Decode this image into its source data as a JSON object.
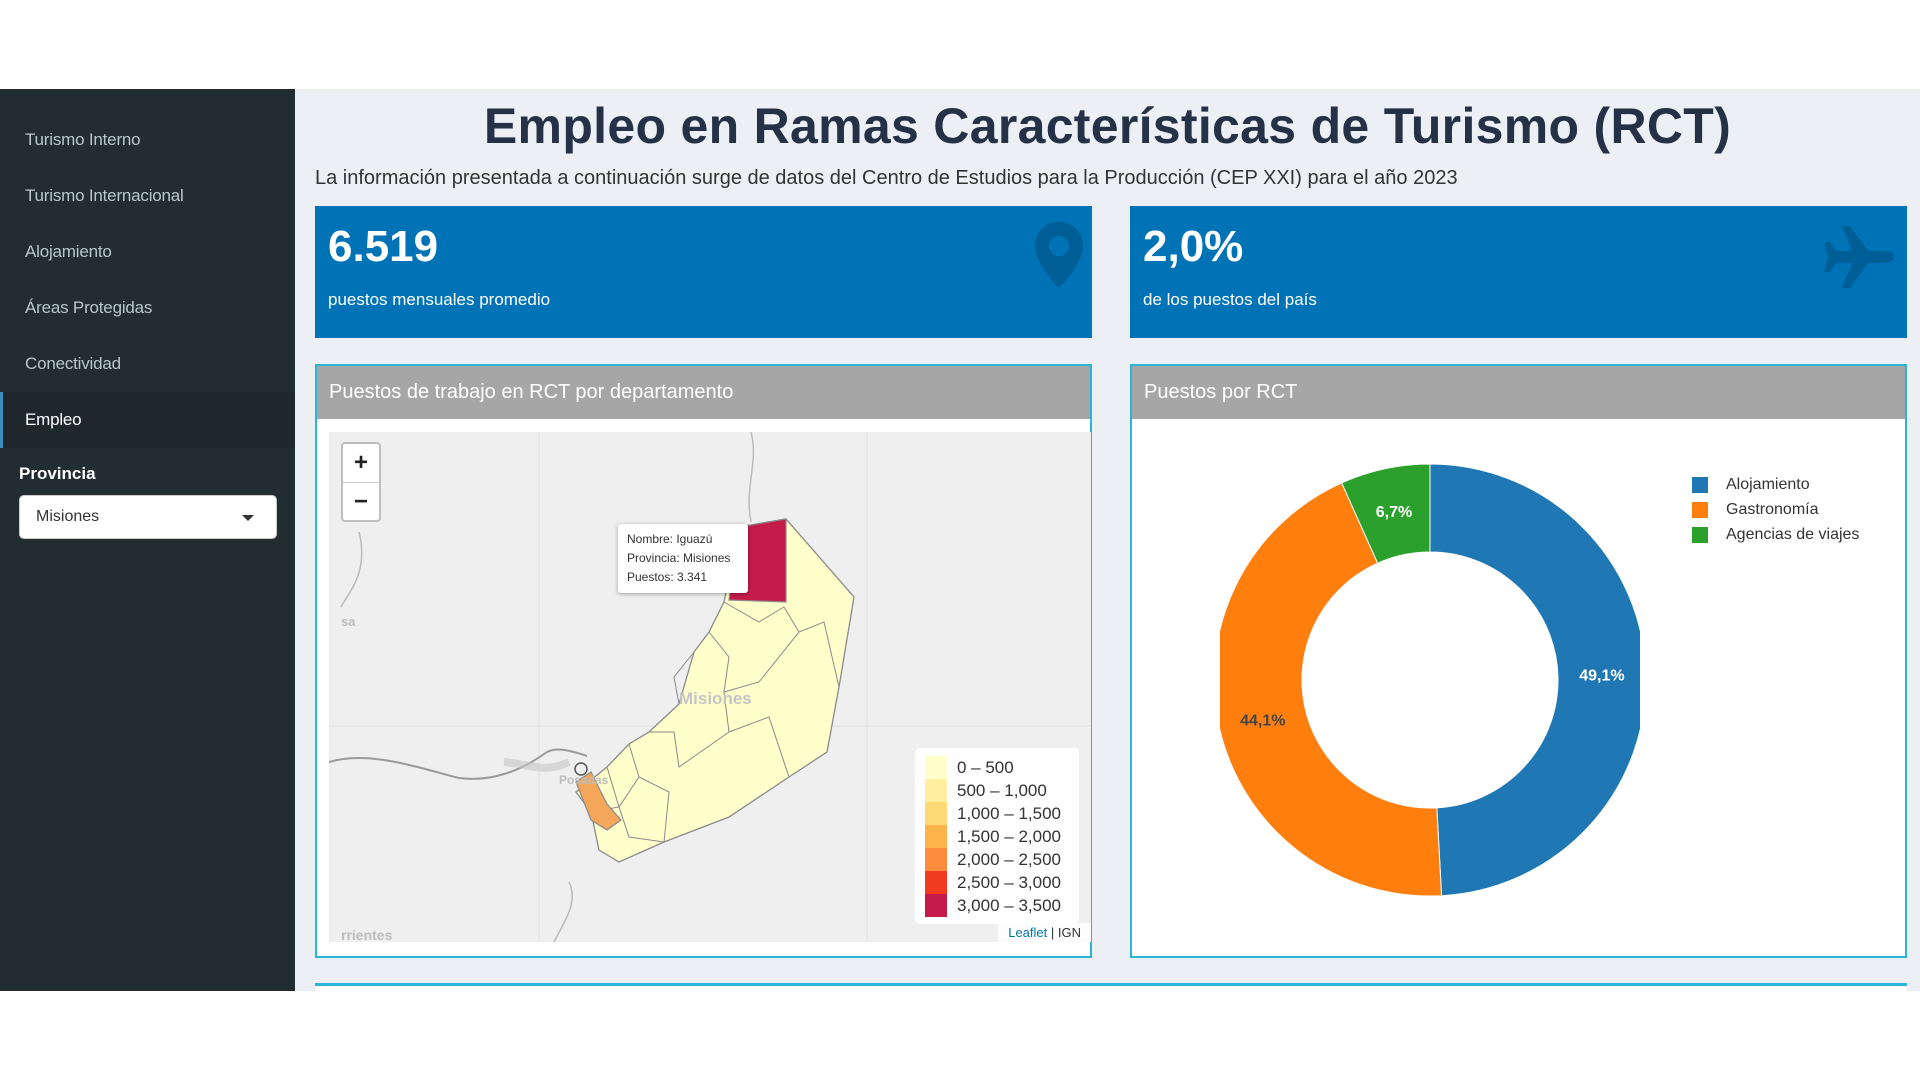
{
  "sidebar": {
    "items": [
      {
        "label": "Turismo Interno"
      },
      {
        "label": "Turismo Internacional"
      },
      {
        "label": "Alojamiento"
      },
      {
        "label": "Áreas Protegidas"
      },
      {
        "label": "Conectividad"
      },
      {
        "label": "Empleo"
      }
    ],
    "provincia_label": "Provincia",
    "provincia_value": "Misiones"
  },
  "header": {
    "title": "Empleo en Ramas Características de Turismo (RCT)",
    "subtitle": "La información presentada a continuación surge de datos del Centro de Estudios para la Producción (CEP XXI) para el año 2023"
  },
  "kpis": [
    {
      "value": "6.519",
      "label": "puestos mensuales promedio",
      "icon": "map-marker-icon"
    },
    {
      "value": "2,0%",
      "label": "de los puestos del país",
      "icon": "plane-icon"
    }
  ],
  "map_panel": {
    "title": "Puestos de trabajo en RCT por departamento",
    "zoom_in": "+",
    "zoom_out": "−",
    "tooltip": {
      "line1": "Nombre: Iguazú",
      "line2": "Provincia: Misiones",
      "line3": "Puestos: 3.341"
    },
    "labels": {
      "province": "Misiones",
      "city": "Posadas",
      "left_edge": "sa",
      "bottom_edge": "rrientes"
    },
    "legend": [
      {
        "label": "0 – 500",
        "color": "#ffffcc"
      },
      {
        "label": "500 – 1,000",
        "color": "#ffeda0"
      },
      {
        "label": "1,000 – 1,500",
        "color": "#fed976"
      },
      {
        "label": "1,500 – 2,000",
        "color": "#feb24c"
      },
      {
        "label": "2,000 – 2,500",
        "color": "#fd8d3c"
      },
      {
        "label": "2,500 – 3,000",
        "color": "#f03b20"
      },
      {
        "label": "3,000 – 3,500",
        "color": "#c51b4a"
      }
    ],
    "attribution_link": "Leaflet",
    "attribution_rest": "| IGN"
  },
  "donut_panel": {
    "title": "Puestos por RCT"
  },
  "chart_data": {
    "type": "pie",
    "donut": true,
    "categories": [
      "Alojamiento",
      "Gastronomía",
      "Agencias de viajes"
    ],
    "values": [
      49.1,
      44.1,
      6.7
    ],
    "value_labels": [
      "49,1%",
      "44,1%",
      "6,7%"
    ],
    "colors": [
      "#1f77b4",
      "#ff7f0e",
      "#2ca02c"
    ],
    "legend": "top-right"
  }
}
